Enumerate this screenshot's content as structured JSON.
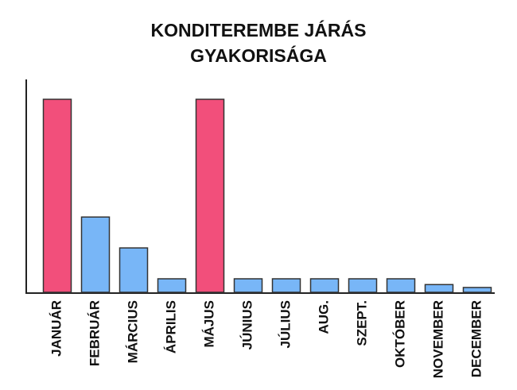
{
  "chart_data": {
    "type": "bar",
    "title": [
      "KONDITEREMBE JÁRÁS",
      "GYAKORISÁGA"
    ],
    "categories": [
      "JANUÁR",
      "FEBRUÁR",
      "MÁRCIUS",
      "ÁPRILIS",
      "MÁJUS",
      "JÚNIUS",
      "JÚLIUS",
      "AUG.",
      "SZEPT.",
      "OKTÓBER",
      "NOVEMBER",
      "DECEMBER"
    ],
    "values": [
      100,
      39,
      23,
      7,
      100,
      7,
      7,
      7,
      7,
      7,
      4,
      2.5
    ],
    "colors": [
      "#f24f7b",
      "#78b6f7",
      "#78b6f7",
      "#78b6f7",
      "#f24f7b",
      "#78b6f7",
      "#78b6f7",
      "#78b6f7",
      "#78b6f7",
      "#78b6f7",
      "#78b6f7",
      "#78b6f7"
    ]
  }
}
